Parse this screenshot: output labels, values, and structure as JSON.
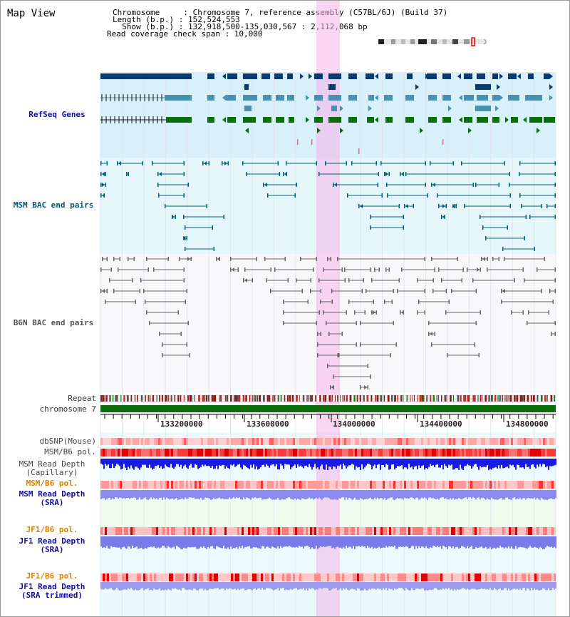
{
  "header": {
    "title": "Map View",
    "info_lines": [
      "Chromosome     : Chromosome 7, reference assembly (C57BL/6J) (Build 37)",
      "Length (b.p.) : 152,524,553",
      "  Show (b.p.) : 132,918,500-135,030,567 : 2,112,068 bp",
      "Read coverage check span : 10,000"
    ]
  },
  "tracks": {
    "refseq": {
      "label": "RefSeq Genes",
      "color": "#1010a0"
    },
    "msm_bac": {
      "label": "MSM BAC end pairs",
      "color": "#005577"
    },
    "b6n_bac": {
      "label": "B6N BAC end pairs",
      "color": "#555555"
    },
    "repeat": {
      "label": "Repeat"
    },
    "chromosome": {
      "label": "chromosome 7"
    },
    "dbsnp": {
      "label": "dbSNP(Mouse)"
    },
    "msm_b6_pol": {
      "label": "MSM/B6 pol."
    },
    "msm_depth_cap": {
      "label": "MSM Read Depth",
      "label2": "(Capillary)"
    },
    "msm_b6_pol2": {
      "label": "MSM/B6 pol.",
      "color": "#e08000"
    },
    "msm_depth_sra": {
      "label": "MSM Read Depth",
      "label2": "(SRA)",
      "color": "#1010a0"
    },
    "jf1_b6_pol": {
      "label": "JF1/B6 pol.",
      "color": "#e08000"
    },
    "jf1_depth_sra": {
      "label": "JF1 Read Depth",
      "label2": "(SRA)",
      "color": "#1010a0"
    },
    "jf1_b6_pol2": {
      "label": "JF1/B6 pol.",
      "color": "#e08000"
    },
    "jf1_depth_trim": {
      "label": "JF1 Read Depth",
      "label2": "(SRA trimmed)",
      "color": "#1010a0"
    }
  },
  "axis": {
    "ticks": [
      "133200000",
      "133600000",
      "134000000",
      "134400000",
      "134800000"
    ]
  },
  "colors": {
    "refseq_dark": "#0a3a6e",
    "refseq_mid": "#4a90b0",
    "refseq_green": "#0a6e0a",
    "highlight": "#f5b5ea",
    "chrom_bar": "#0b6e0b"
  }
}
